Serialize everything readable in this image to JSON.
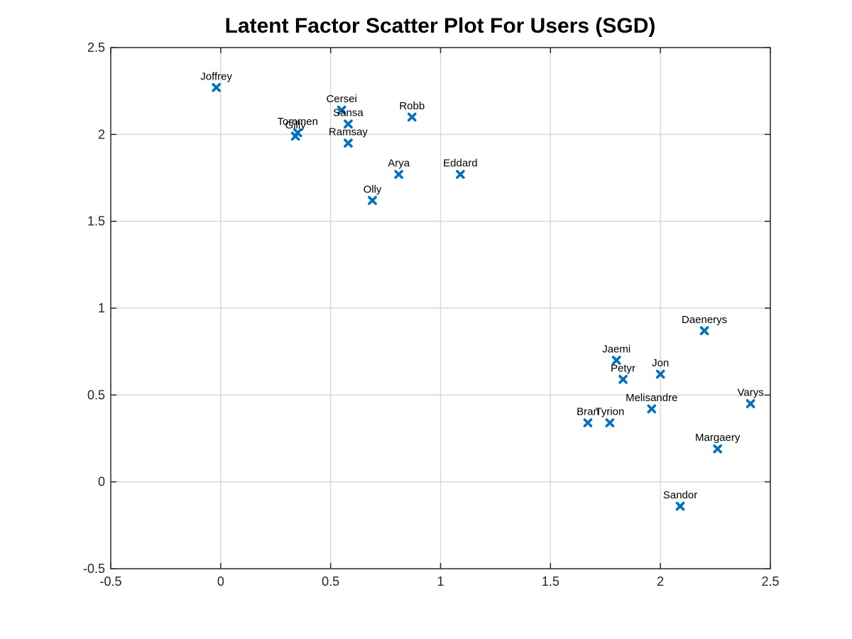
{
  "chart_data": {
    "type": "scatter",
    "title": "Latent Factor Scatter Plot For Users (SGD)",
    "xlabel": "",
    "ylabel": "",
    "xlim": [
      -0.5,
      2.5
    ],
    "ylim": [
      -0.5,
      2.5
    ],
    "xticks": [
      "-0.5",
      "0",
      "0.5",
      "1",
      "1.5",
      "2",
      "2.5"
    ],
    "yticks": [
      "-0.5",
      "0",
      "0.5",
      "1",
      "1.5",
      "2",
      "2.5"
    ],
    "grid": true,
    "marker": "x",
    "marker_color": "#0072BD",
    "points": [
      {
        "label": "Joffrey",
        "x": -0.02,
        "y": 2.27
      },
      {
        "label": "Cersei",
        "x": 0.55,
        "y": 2.14
      },
      {
        "label": "Sansa",
        "x": 0.58,
        "y": 2.06
      },
      {
        "label": "Robb",
        "x": 0.87,
        "y": 2.1
      },
      {
        "label": "Tommen",
        "x": 0.35,
        "y": 2.01
      },
      {
        "label": "Gilly",
        "x": 0.34,
        "y": 1.99
      },
      {
        "label": "Ramsay",
        "x": 0.58,
        "y": 1.95
      },
      {
        "label": "Arya",
        "x": 0.81,
        "y": 1.77
      },
      {
        "label": "Eddard",
        "x": 1.09,
        "y": 1.77
      },
      {
        "label": "Olly",
        "x": 0.69,
        "y": 1.62
      },
      {
        "label": "Daenerys",
        "x": 2.2,
        "y": 0.87
      },
      {
        "label": "Jaemi",
        "x": 1.8,
        "y": 0.7
      },
      {
        "label": "Jon",
        "x": 2.0,
        "y": 0.62
      },
      {
        "label": "Petyr",
        "x": 1.83,
        "y": 0.59
      },
      {
        "label": "Melisandre",
        "x": 1.96,
        "y": 0.42
      },
      {
        "label": "Varys",
        "x": 2.41,
        "y": 0.45
      },
      {
        "label": "Bran",
        "x": 1.67,
        "y": 0.34
      },
      {
        "label": "Tyrion",
        "x": 1.77,
        "y": 0.34
      },
      {
        "label": "Margaery",
        "x": 2.26,
        "y": 0.19
      },
      {
        "label": "Sandor",
        "x": 2.09,
        "y": -0.14
      }
    ]
  }
}
